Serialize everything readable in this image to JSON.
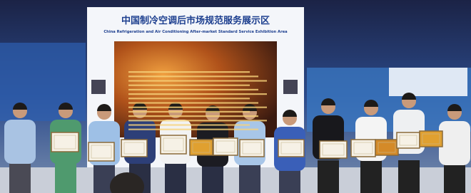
{
  "sign": {
    "title": "中国制冷空调后市场规范服务展示区",
    "subtitle": "China Refrigeration and Air Conditioning After-market Standard Service Exhibition Area"
  }
}
